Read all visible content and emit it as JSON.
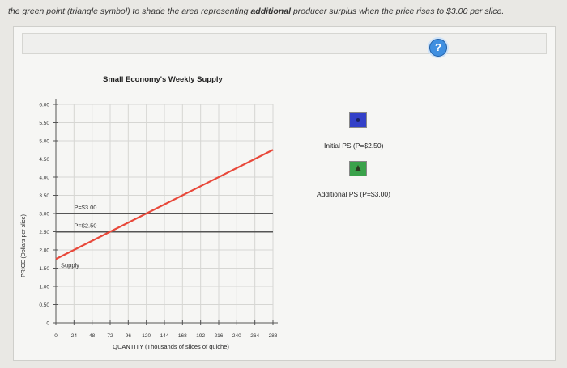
{
  "instruction": {
    "pre": "the green point (triangle symbol) to shade the area representing ",
    "bold": "additional",
    "post": " producer surplus when the price rises to $3.00 per slice."
  },
  "help_label": "?",
  "chart_data": {
    "type": "line",
    "title": "Small Economy's Weekly Supply",
    "xlabel": "QUANTITY (Thousands of slices of quiche)",
    "ylabel": "PRICE (Dollars per slice)",
    "x_ticks": [
      "0",
      "24",
      "48",
      "72",
      "96",
      "120",
      "144",
      "168",
      "192",
      "216",
      "240",
      "264",
      "288"
    ],
    "y_ticks": [
      "0",
      "0.50",
      "1.00",
      "1.50",
      "2.00",
      "2.50",
      "3.00",
      "3.50",
      "4.00",
      "4.50",
      "5.00",
      "5.50",
      "6.00"
    ],
    "xlim": [
      0,
      288
    ],
    "ylim": [
      0,
      6
    ],
    "grid": true,
    "series": [
      {
        "name": "Supply",
        "x": [
          0,
          288
        ],
        "y": [
          1.75,
          4.75
        ],
        "color": "#e8483a"
      }
    ],
    "price_lines": [
      {
        "label": "P=$3.00",
        "y": 3.0
      },
      {
        "label": "P=$2.50",
        "y": 2.5
      }
    ]
  },
  "legend": [
    {
      "label": "Initial PS (P=$2.50)",
      "color": "#3340c8",
      "icon": "point-icon"
    },
    {
      "label": "Additional PS (P=$3.00)",
      "color": "#3aa24a",
      "icon": "triangle-icon"
    }
  ]
}
